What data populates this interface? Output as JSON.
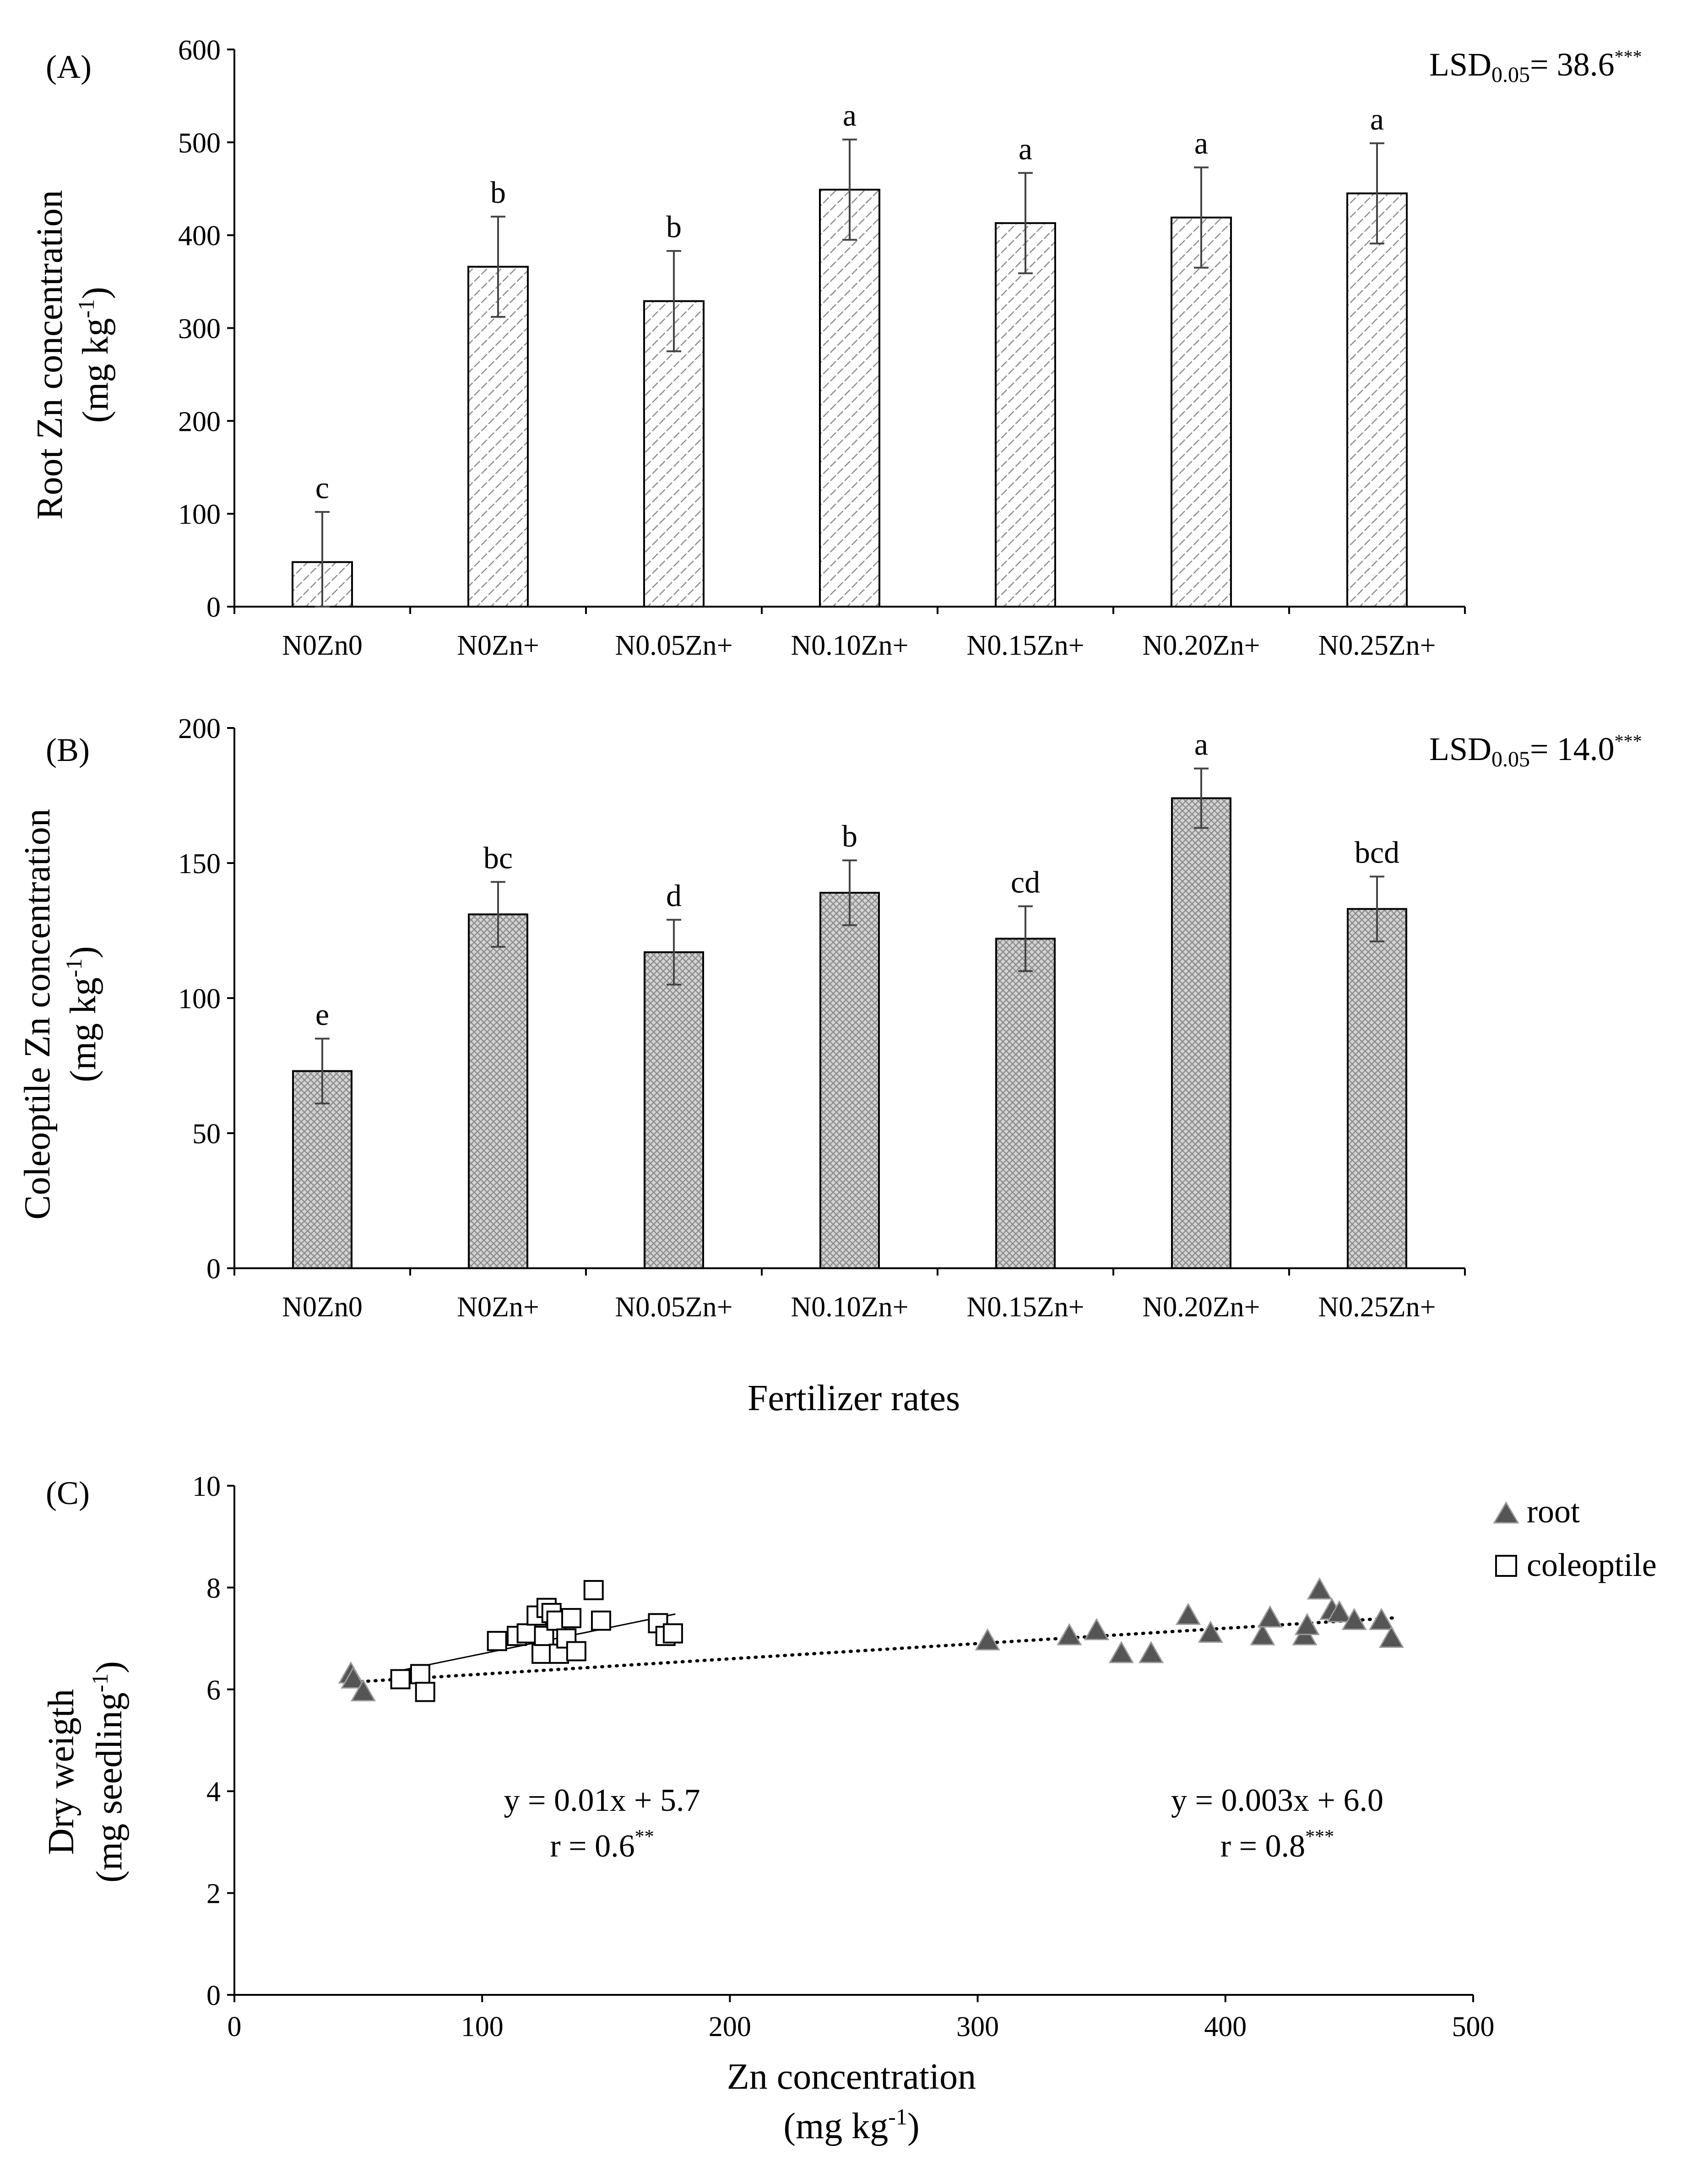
{
  "figure": {
    "charts": [
      {
        "type": "bar",
        "panel_label": "(A)",
        "lsd_label": "LSD",
        "lsd_sub": "0.05",
        "lsd_value": "= 38.6",
        "lsd_sig": "***",
        "ylabel_line1": "Root Zn concentration",
        "ylabel_line2": "(mg kg",
        "ylabel_sup": "-1",
        "ylabel_close": ")",
        "ylim": [
          0,
          600
        ],
        "yticks": [
          "0",
          "100",
          "200",
          "300",
          "400",
          "500",
          "600"
        ],
        "categories": [
          "N0Zn0",
          "N0Zn+",
          "N0.05Zn+",
          "N0.10Zn+",
          "N0.15Zn+",
          "N0.20Zn+",
          "N0.25Zn+"
        ],
        "values": [
          48,
          366,
          329,
          449,
          413,
          419,
          445
        ],
        "errors": [
          54,
          54,
          54,
          54,
          54,
          54,
          54
        ],
        "letters": [
          "c",
          "b",
          "b",
          "a",
          "a",
          "a",
          "a"
        ],
        "pattern": "diagonal-hatch"
      },
      {
        "type": "bar",
        "panel_label": "(B)",
        "lsd_label": "LSD",
        "lsd_sub": "0.05",
        "lsd_value": "= 14.0",
        "lsd_sig": "***",
        "ylabel_line1": "Coleoptile Zn concentration",
        "ylabel_line2": "(mg kg",
        "ylabel_sup": "-1",
        "ylabel_close": ")",
        "xlabel": "Fertilizer rates",
        "ylim": [
          0,
          200
        ],
        "yticks": [
          "0",
          "50",
          "100",
          "150",
          "200"
        ],
        "categories": [
          "N0Zn0",
          "N0Zn+",
          "N0.05Zn+",
          "N0.10Zn+",
          "N0.15Zn+",
          "N0.20Zn+",
          "N0.25Zn+"
        ],
        "values": [
          73,
          131,
          117,
          139,
          122,
          174,
          133
        ],
        "errors": [
          12,
          12,
          12,
          12,
          12,
          11,
          12
        ],
        "letters": [
          "e",
          "bc",
          "d",
          "b",
          "cd",
          "a",
          "bcd"
        ],
        "pattern": "crosshatch"
      },
      {
        "type": "scatter",
        "panel_label": "(C)",
        "ylabel_line1": "Dry weigth",
        "ylabel_line2": "(mg seedling",
        "ylabel_sup": "-1",
        "ylabel_close": ")",
        "xlabel_line1": "Zn concentration",
        "xlabel_line2": "(mg kg",
        "xlabel_sup": "-1",
        "xlabel_close": ")",
        "xlim": [
          0,
          500
        ],
        "ylim": [
          0,
          10
        ],
        "xticks": [
          "0",
          "100",
          "200",
          "300",
          "400",
          "500"
        ],
        "yticks": [
          "0",
          "2",
          "4",
          "6",
          "8",
          "10"
        ],
        "series": [
          {
            "name": "root",
            "marker": "triangle",
            "color": "#555555",
            "points": [
              [
                47,
                6.3
              ],
              [
                48,
                6.2
              ],
              [
                52,
                5.95
              ],
              [
                304,
                6.95
              ],
              [
                337,
                7.05
              ],
              [
                348,
                7.15
              ],
              [
                358,
                6.7
              ],
              [
                370,
                6.7
              ],
              [
                385,
                7.45
              ],
              [
                394,
                7.1
              ],
              [
                415,
                7.05
              ],
              [
                418,
                7.4
              ],
              [
                432,
                7.05
              ],
              [
                433,
                7.25
              ],
              [
                438,
                7.95
              ],
              [
                443,
                7.55
              ],
              [
                446,
                7.5
              ],
              [
                452,
                7.35
              ],
              [
                463,
                7.35
              ],
              [
                467,
                7.0
              ]
            ],
            "fit": {
              "slope": 0.003,
              "intercept": 6.0,
              "x_range": [
                45,
                468
              ],
              "style": "dotted"
            },
            "equation": "y = 0.003x + 6.0",
            "r_label": "r = 0.8",
            "r_sig": "***"
          },
          {
            "name": "coleoptile",
            "marker": "square",
            "color": "#ffffff",
            "points": [
              [
                67,
                6.2
              ],
              [
                75,
                6.3
              ],
              [
                77,
                5.95
              ],
              [
                106,
                6.95
              ],
              [
                114,
                7.05
              ],
              [
                118,
                7.1
              ],
              [
                122,
                7.45
              ],
              [
                124,
                6.7
              ],
              [
                125,
                7.05
              ],
              [
                126,
                7.6
              ],
              [
                128,
                7.5
              ],
              [
                130,
                7.35
              ],
              [
                131,
                6.7
              ],
              [
                134,
                7.0
              ],
              [
                136,
                7.4
              ],
              [
                138,
                6.75
              ],
              [
                145,
                7.95
              ],
              [
                148,
                7.35
              ],
              [
                171,
                7.3
              ],
              [
                174,
                7.05
              ],
              [
                177,
                7.1
              ]
            ],
            "fit": {
              "slope": 0.01,
              "intercept": 5.7,
              "x_range": [
                68,
                178
              ],
              "style": "solid"
            },
            "equation": "y = 0.01x + 5.7",
            "r_label": "r = 0.6",
            "r_sig": "**"
          }
        ]
      }
    ]
  }
}
